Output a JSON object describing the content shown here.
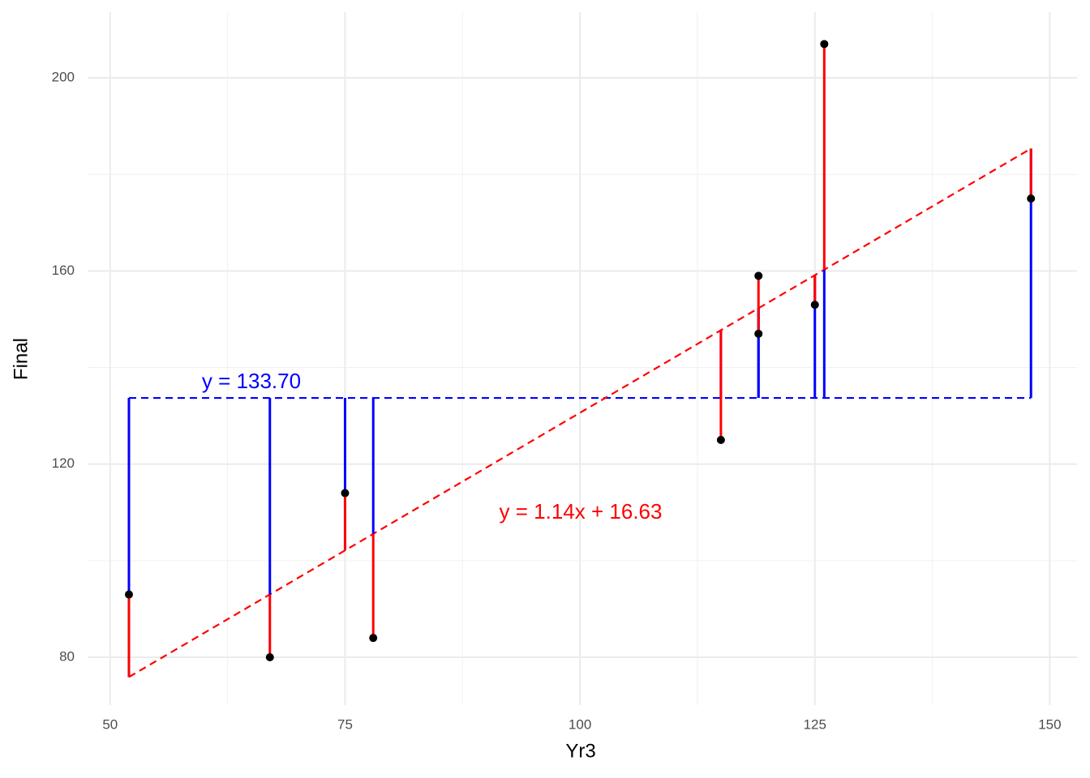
{
  "chart_data": {
    "type": "scatter",
    "xlabel": "Yr3",
    "ylabel": "Final",
    "x": [
      52,
      67,
      75,
      78,
      115,
      119,
      119,
      125,
      126,
      148
    ],
    "y": [
      93,
      80,
      114,
      84,
      125,
      159,
      147,
      153,
      207,
      175
    ],
    "point_color": "#000000",
    "mean": {
      "value": 133.7,
      "label": "y = 133.70",
      "color": "#0000ff"
    },
    "regression": {
      "slope": 1.14,
      "intercept": 16.63,
      "label": "y = 1.14x + 16.63",
      "color": "#ff0000"
    },
    "xlim": [
      47.6,
      152.9
    ],
    "ylim": [
      70.1,
      213.6
    ],
    "xticks": [
      50,
      75,
      100,
      125,
      150
    ],
    "yticks": [
      80,
      120,
      160,
      200
    ],
    "xminor": [
      62.5,
      87.5,
      112.5,
      137.5
    ],
    "yminor": [
      100,
      140,
      180
    ],
    "grid": true
  }
}
